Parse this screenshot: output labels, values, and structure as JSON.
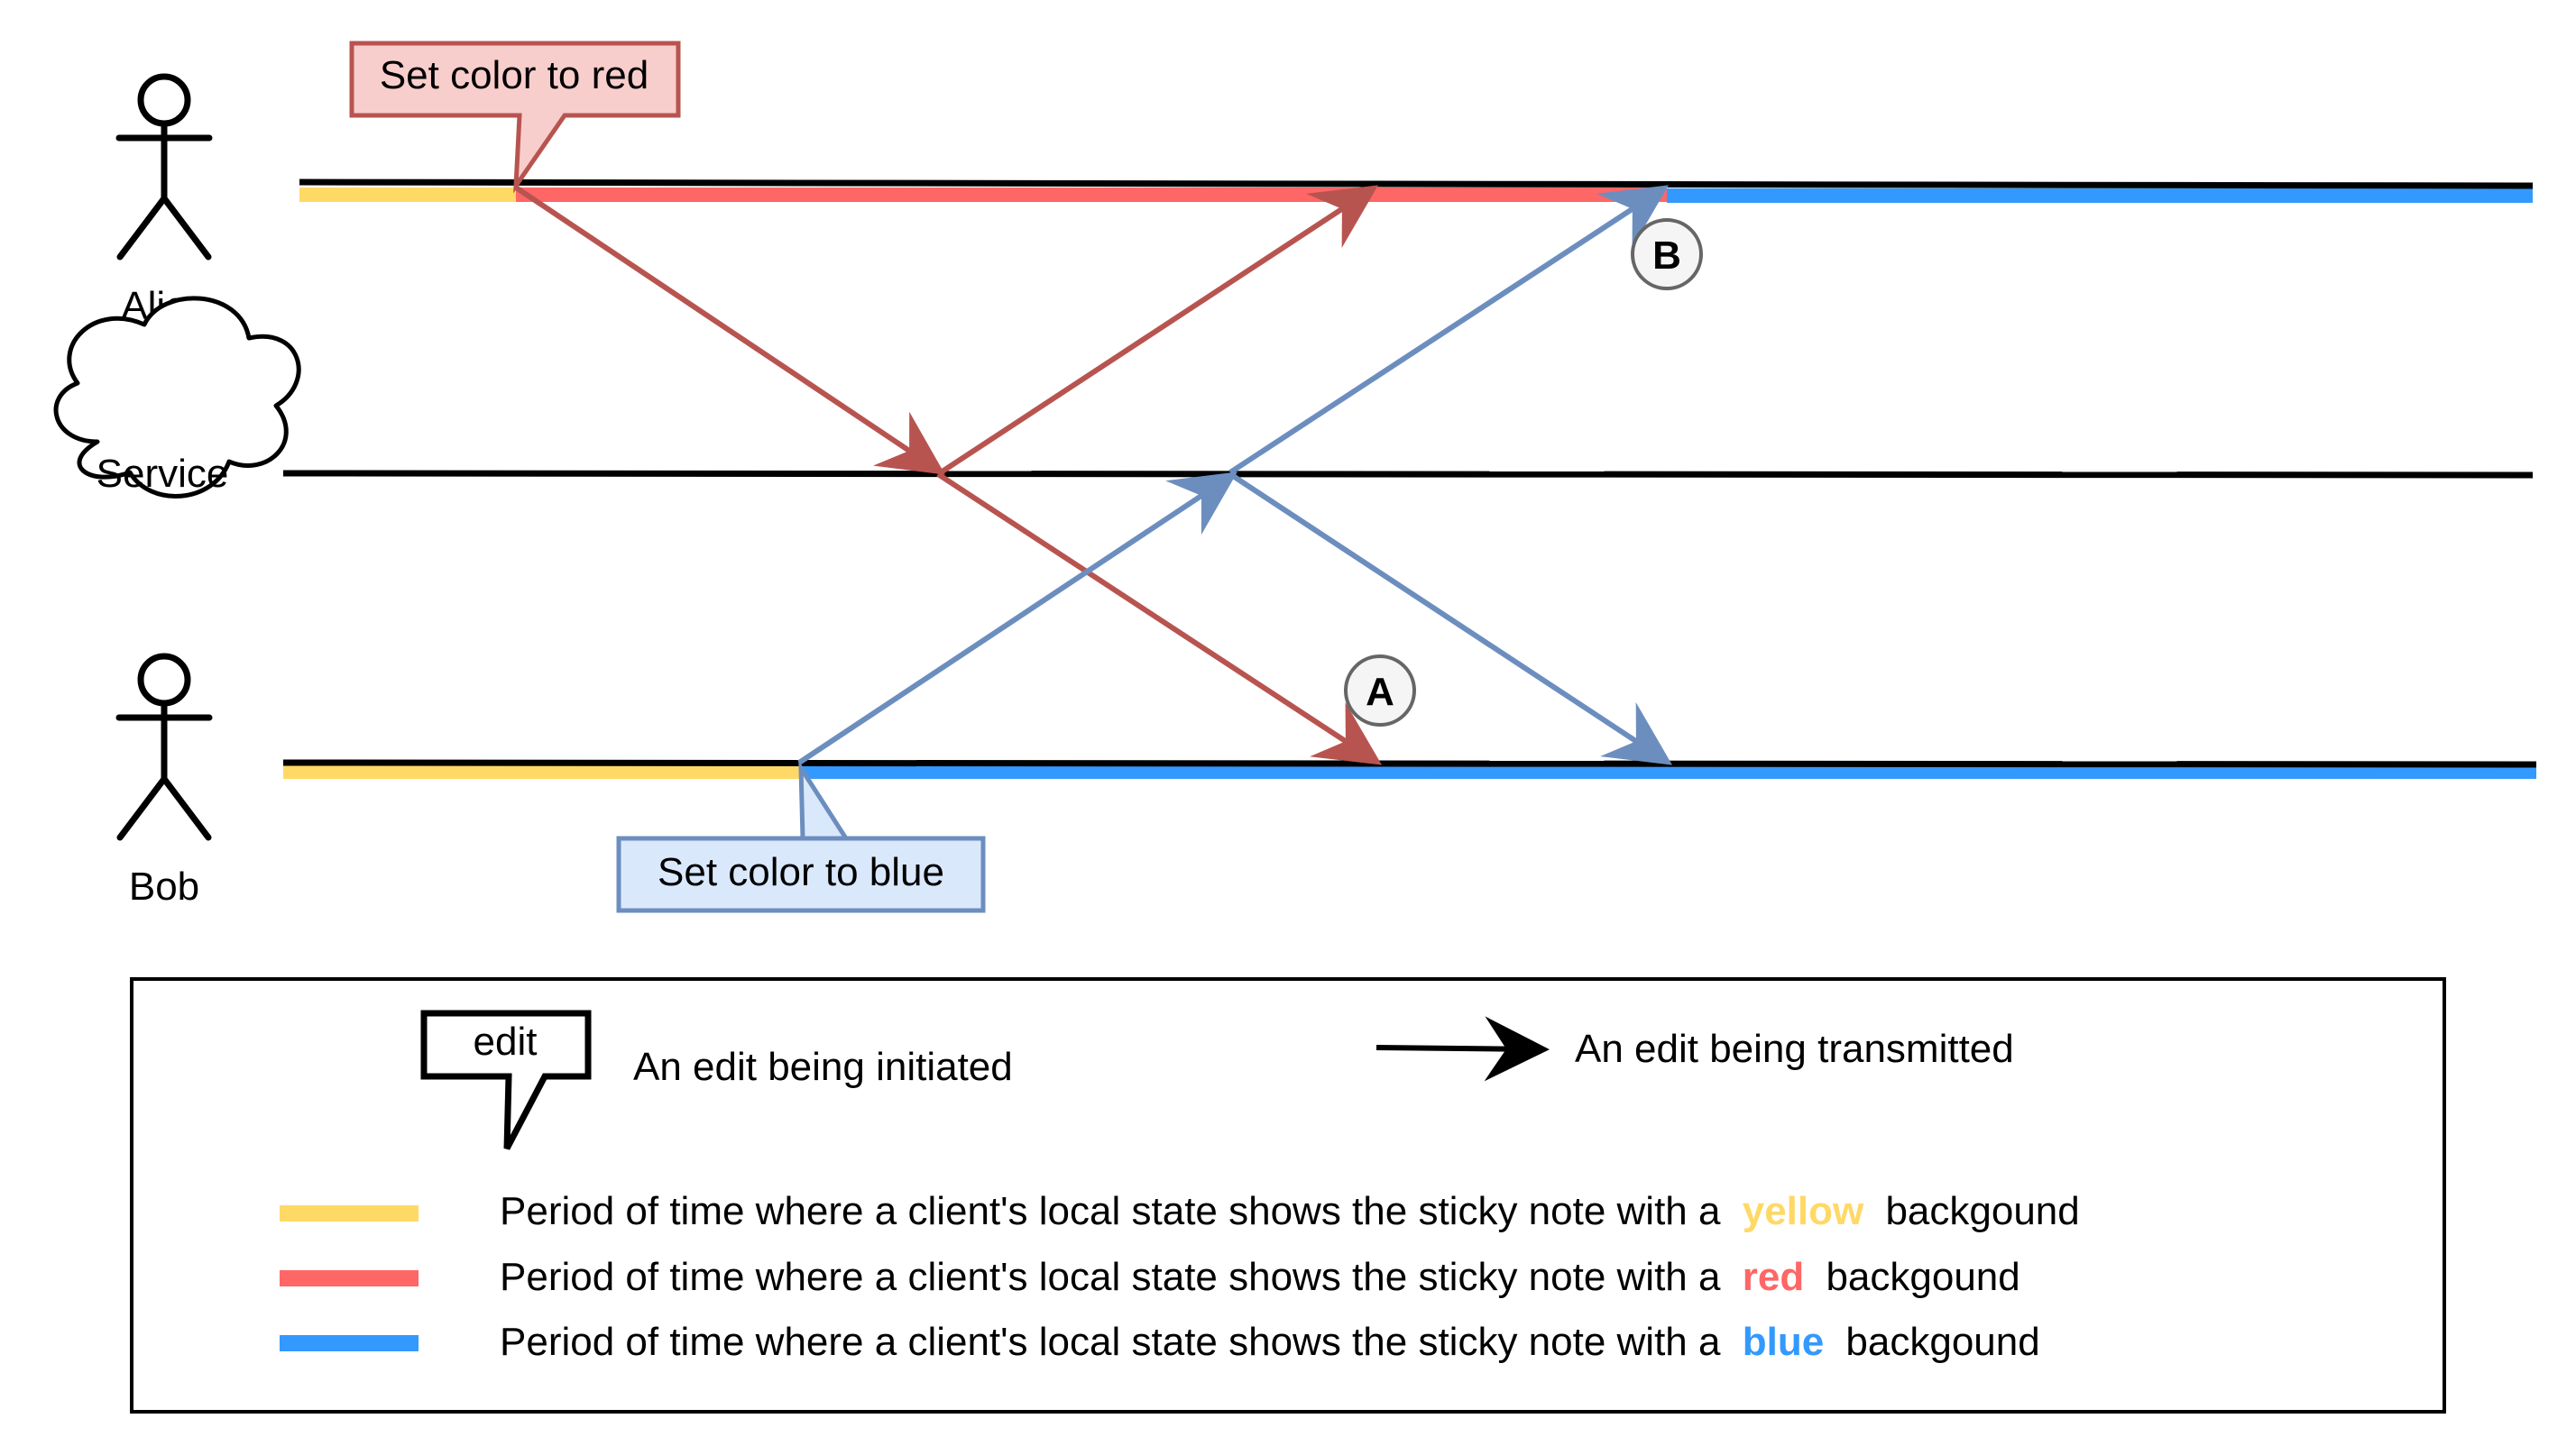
{
  "colors": {
    "yellow": "#FFD966",
    "red": "#FF6666",
    "blue": "#3399FF",
    "red_arrow": "#B85450",
    "blue_arrow": "#6C8EBF",
    "red_callout_fill": "#F8CECC",
    "blue_callout_fill": "#DAE8FC",
    "marker_fill": "#F5F5F5",
    "marker_stroke": "#666666"
  },
  "actors": {
    "alice": {
      "label": "Alice",
      "icon": "stick-figure-icon"
    },
    "service": {
      "label": "Service",
      "icon": "cloud-icon"
    },
    "bob": {
      "label": "Bob",
      "icon": "stick-figure-icon"
    }
  },
  "callouts": {
    "alice_edit": "Set color to red",
    "bob_edit": "Set color to blue"
  },
  "markers": {
    "a": "A",
    "b": "B"
  },
  "legend": {
    "edit_icon_label": "edit",
    "edit_initiated": "An edit being initiated",
    "edit_transmitted": "An edit being transmitted",
    "state_prefix": "Period of time where a client's local state shows the sticky note with a",
    "state_suffix": "backgound",
    "colors": {
      "yellow": "yellow",
      "red": "red",
      "blue": "blue"
    }
  }
}
